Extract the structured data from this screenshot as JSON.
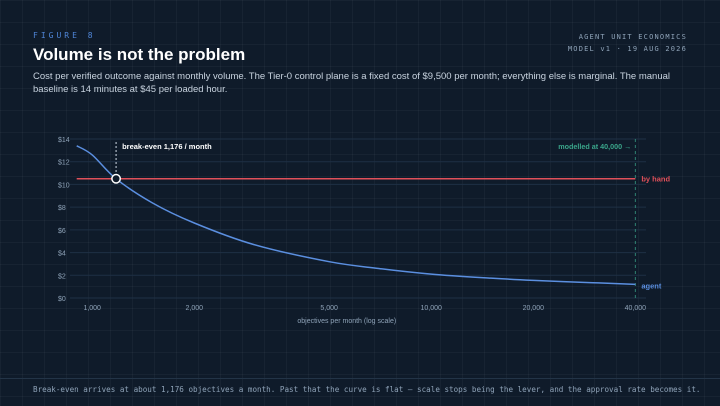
{
  "header": {
    "figure_label": "FIGURE 8",
    "brand_line1": "AGENT UNIT ECONOMICS",
    "brand_line2": "MODEL v1 · 19 AUG 2026",
    "title": "Volume is not the problem",
    "subtitle": "Cost per verified outcome against monthly volume. The Tier-0 control plane is a fixed cost of $9,500 per month; everything else is marginal. The manual baseline is 14 minutes at $45 per loaded hour."
  },
  "footer": {
    "text": "Break-even arrives at about 1,176 objectives a month. Past that the curve is flat — scale stops being the lever, and the approval rate becomes it."
  },
  "colors": {
    "agent": "#5b8fe0",
    "by_hand": "#e0505a",
    "modelled": "#3aa58a",
    "axis_text": "#8fa3b8",
    "gridline": "#1f3045"
  },
  "chart_data": {
    "type": "line",
    "x_scale": "log",
    "xlabel": "objectives per month (log scale)",
    "ylabel": "",
    "xlim": [
      860,
      43000
    ],
    "ylim": [
      0,
      14
    ],
    "x_ticks": [
      1000,
      2000,
      5000,
      10000,
      20000,
      40000
    ],
    "x_tick_labels": [
      "1,000",
      "2,000",
      "5,000",
      "10,000",
      "20,000",
      "40,000"
    ],
    "y_ticks": [
      0,
      2,
      4,
      6,
      8,
      10,
      12,
      14
    ],
    "y_tick_labels": [
      "$0",
      "$2",
      "$4",
      "$6",
      "$8",
      "$10",
      "$12",
      "$14"
    ],
    "series": [
      {
        "name": "agent",
        "x": [
          900,
          1000,
          1176,
          1500,
          2000,
          3000,
          5000,
          7000,
          10000,
          15000,
          20000,
          30000,
          40000
        ],
        "values": [
          13.4,
          12.6,
          10.5,
          8.4,
          6.6,
          4.7,
          3.2,
          2.6,
          2.1,
          1.75,
          1.55,
          1.35,
          1.2
        ]
      },
      {
        "name": "by hand",
        "x": [
          900,
          40000
        ],
        "values": [
          10.5,
          10.5
        ]
      }
    ],
    "annotations": {
      "break_even_label": "break-even 1,176 / month",
      "break_even_x": 1176,
      "break_even_y": 10.5,
      "modelled_label": "modelled at 40,000 →",
      "modelled_x": 40000
    },
    "grid": true,
    "legend": "inline-right"
  }
}
